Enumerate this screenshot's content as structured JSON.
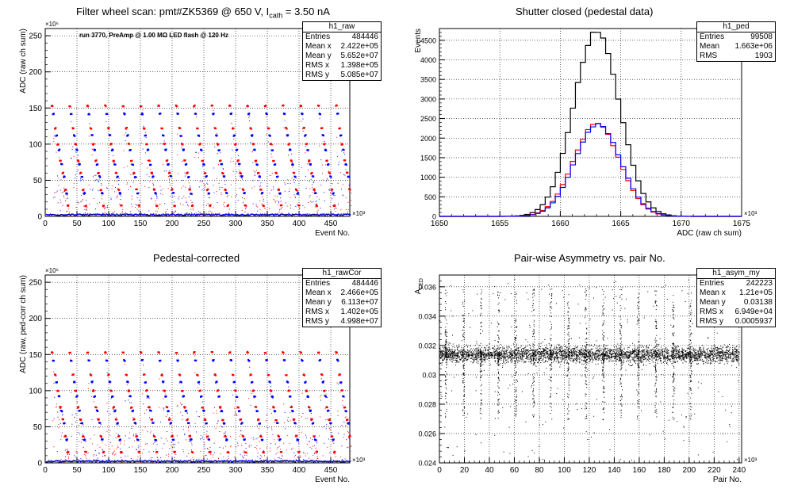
{
  "panels": [
    {
      "title_parts": [
        "Filter wheel scan: pmt#ZK5369 @   650 V, I",
        "cath",
        " = 3.50 nA"
      ],
      "stats_name": "h1_raw",
      "stats": [
        [
          "Entries",
          "484446"
        ],
        [
          "Mean x",
          "2.422e+05"
        ],
        [
          "Mean y",
          "5.652e+07"
        ],
        [
          "RMS x",
          "1.398e+05"
        ],
        [
          "RMS y",
          "5.085e+07"
        ]
      ],
      "inner_text": "run 3770, PreAmp @ 1.00 MΩ LED flash @  120 Hz"
    },
    {
      "title": "Shutter closed (pedestal data)",
      "stats_name": "h1_ped",
      "stats": [
        [
          "Entries",
          "99508"
        ],
        [
          "Mean",
          "1.663e+06"
        ],
        [
          "RMS",
          "1903"
        ]
      ]
    },
    {
      "title": "Pedestal-corrected",
      "stats_name": "h1_rawCor",
      "stats": [
        [
          "Entries",
          "484446"
        ],
        [
          "Mean x",
          "2.466e+05"
        ],
        [
          "Mean y",
          "6.113e+07"
        ],
        [
          "RMS x",
          "1.402e+05"
        ],
        [
          "RMS y",
          "4.998e+07"
        ]
      ]
    },
    {
      "title": "Pair-wise Asymmetry vs. pair No.",
      "stats_name": "h1_asym_my",
      "stats": [
        [
          "Entries",
          "242223"
        ],
        [
          "Mean x",
          "1.21e+05"
        ],
        [
          "Mean y",
          "0.03138"
        ],
        [
          "RMS x",
          "6.949e+04"
        ],
        [
          "RMS y",
          "0.0005937"
        ]
      ]
    }
  ],
  "chart_data": [
    {
      "type": "scatter",
      "title": "Filter wheel scan: pmt#ZK5369 @   650 V, I cath = 3.50 nA",
      "xlabel": "Event No.",
      "ylabel": "ADC (raw ch sum)",
      "x_exponent": "×10³",
      "y_exponent": "×10⁶",
      "xlim": [
        0,
        480
      ],
      "ylim": [
        0,
        260
      ],
      "xticks": [
        0,
        50,
        100,
        150,
        200,
        250,
        300,
        350,
        400,
        450
      ],
      "yticks": [
        0,
        50,
        100,
        150,
        200,
        250
      ],
      "grid": true,
      "cycle_starts": [
        10,
        38,
        66,
        94,
        122,
        150,
        178,
        206,
        234,
        262,
        290,
        318,
        346,
        374,
        402,
        430,
        458
      ],
      "levels": [
        {
          "dx": 0,
          "y": 153,
          "color": "#ff0000"
        },
        {
          "dx": 2,
          "y": 142,
          "color": "#0000ff"
        },
        {
          "dx": 5,
          "y": 122,
          "color": "#ff0000"
        },
        {
          "dx": 7,
          "y": 112,
          "color": "#0000ff"
        },
        {
          "dx": 9,
          "y": 100,
          "color": "#ff0000"
        },
        {
          "dx": 11,
          "y": 92,
          "color": "#0000ff"
        },
        {
          "dx": 13,
          "y": 77,
          "color": "#ff0000"
        },
        {
          "dx": 15,
          "y": 72,
          "color": "#0000ff"
        },
        {
          "dx": 17,
          "y": 60,
          "color": "#ff0000"
        },
        {
          "dx": 19,
          "y": 55,
          "color": "#0000ff"
        },
        {
          "dx": 21,
          "y": 37,
          "color": "#ff0000"
        },
        {
          "dx": 23,
          "y": 32,
          "color": "#0000ff"
        },
        {
          "dx": 25,
          "y": 15,
          "color": "#ff0000"
        }
      ]
    },
    {
      "type": "line",
      "title": "Shutter closed (pedestal data)",
      "xlabel": "ADC (raw ch sum)",
      "ylabel": "Events",
      "x_exponent": "×10³",
      "xlim": [
        1650,
        1675
      ],
      "ylim": [
        0,
        4800
      ],
      "xticks": [
        1650,
        1655,
        1660,
        1665,
        1670,
        1675
      ],
      "yticks": [
        0,
        500,
        1000,
        1500,
        2000,
        2500,
        3000,
        3500,
        4000,
        4500
      ],
      "grid": true,
      "series": [
        {
          "color": "#000000",
          "mean": 1663.0,
          "sigma": 1.9,
          "peak": 4720
        },
        {
          "color": "#ff0000",
          "mean": 1663.0,
          "sigma": 1.9,
          "peak": 2370
        },
        {
          "color": "#0000ff",
          "mean": 1663.1,
          "sigma": 1.9,
          "peak": 2350
        }
      ]
    },
    {
      "type": "scatter",
      "title": "Pedestal-corrected",
      "xlabel": "Event No.",
      "ylabel": "ADC (raw, ped-corr ch sum)",
      "x_exponent": "×10³",
      "y_exponent": "×10⁶",
      "xlim": [
        0,
        480
      ],
      "ylim": [
        0,
        260
      ],
      "xticks": [
        0,
        50,
        100,
        150,
        200,
        250,
        300,
        350,
        400,
        450
      ],
      "yticks": [
        0,
        50,
        100,
        150,
        200,
        250
      ],
      "grid": true
    },
    {
      "type": "scatter",
      "title": "Pair-wise Asymmetry vs. pair No.",
      "xlabel": "Pair No.",
      "ylabel": "A_LED",
      "x_exponent": "×10³",
      "xlim": [
        0,
        242
      ],
      "ylim": [
        0.024,
        0.0368
      ],
      "xticks": [
        0,
        20,
        40,
        60,
        80,
        100,
        120,
        140,
        160,
        180,
        200,
        220,
        240
      ],
      "yticks": [
        0.024,
        0.026,
        0.028,
        0.03,
        0.032,
        0.034,
        0.036
      ],
      "grid": true,
      "band": {
        "center": 0.0314,
        "halfwidth": 0.0006
      },
      "spike_x": [
        5,
        19,
        33,
        47,
        61,
        75,
        89,
        103,
        117,
        131,
        145,
        159,
        173,
        187,
        201
      ]
    }
  ]
}
